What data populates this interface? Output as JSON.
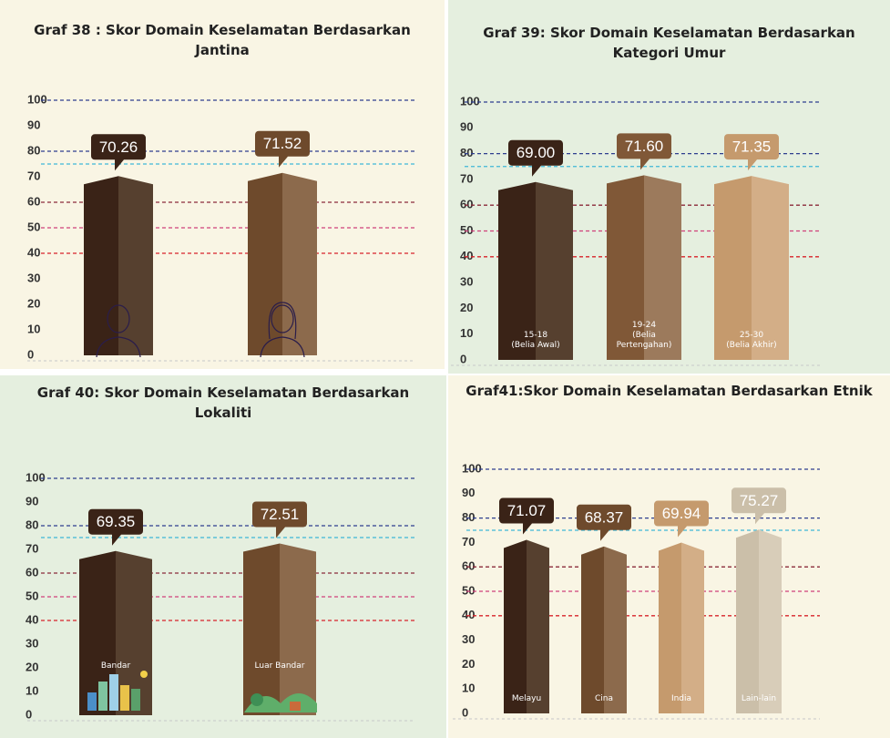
{
  "chart_data": [
    {
      "type": "bar",
      "title": "Graf 38 : Skor Domain Keselamatan Berdasarkan Jantina",
      "categories": [
        null,
        null
      ],
      "values": [
        70.26,
        71.52
      ],
      "value_labels": [
        "70.26",
        "71.52"
      ],
      "colors": [
        [
          "#3a2317",
          "#56402f"
        ],
        [
          "#6e4a2c",
          "#8c6a4c"
        ]
      ],
      "ylim": [
        0,
        100
      ],
      "yticks": [
        0,
        10,
        20,
        30,
        40,
        50,
        60,
        70,
        80,
        90,
        100
      ],
      "reference_lines": [
        {
          "y": 100,
          "color": "#2e3f8f"
        },
        {
          "y": 80,
          "color": "#2e3f8f"
        },
        {
          "y": 75,
          "color": "#3fb8d6"
        },
        {
          "y": 60,
          "color": "#8a2a3a"
        },
        {
          "y": 50,
          "color": "#d0407a"
        },
        {
          "y": 40,
          "color": "#d8232a"
        }
      ]
    },
    {
      "type": "bar",
      "title": "Graf 39: Skor Domain Keselamatan Berdasarkan Kategori Umur",
      "categories": [
        "15-18\n(Belia Awal)",
        "19-24\n(Belia\nPertengahan)",
        "25-30\n(Belia Akhir)"
      ],
      "values": [
        69,
        71.6,
        71.35
      ],
      "value_labels": [
        "69.00",
        "71.60",
        "71.35"
      ],
      "colors": [
        [
          "#3a2317",
          "#56402f"
        ],
        [
          "#805837",
          "#9c7a5c"
        ],
        [
          "#c59a6d",
          "#d3ae87"
        ]
      ],
      "ylim": [
        0,
        100
      ],
      "yticks": [
        0,
        10,
        20,
        30,
        40,
        50,
        60,
        70,
        80,
        90,
        100
      ],
      "reference_lines": [
        {
          "y": 100,
          "color": "#2e3f8f"
        },
        {
          "y": 80,
          "color": "#2e3f8f"
        },
        {
          "y": 75,
          "color": "#3fb8d6"
        },
        {
          "y": 60,
          "color": "#8a2a3a"
        },
        {
          "y": 50,
          "color": "#d0407a"
        },
        {
          "y": 40,
          "color": "#d8232a"
        }
      ]
    },
    {
      "type": "bar",
      "title": "Graf 40: Skor Domain Keselamatan Berdasarkan Lokaliti",
      "categories": [
        "Bandar",
        "Luar Bandar"
      ],
      "values": [
        69.35,
        72.51
      ],
      "value_labels": [
        "69.35",
        "72.51"
      ],
      "colors": [
        [
          "#3a2317",
          "#56402f"
        ],
        [
          "#6e4a2c",
          "#8c6a4c"
        ]
      ],
      "ylim": [
        0,
        100
      ],
      "yticks": [
        0,
        10,
        20,
        30,
        40,
        50,
        60,
        70,
        80,
        90,
        100
      ],
      "reference_lines": [
        {
          "y": 100,
          "color": "#2e3f8f"
        },
        {
          "y": 80,
          "color": "#2e3f8f"
        },
        {
          "y": 75,
          "color": "#3fb8d6"
        },
        {
          "y": 60,
          "color": "#8a2a3a"
        },
        {
          "y": 50,
          "color": "#d0407a"
        },
        {
          "y": 40,
          "color": "#d8232a"
        }
      ]
    },
    {
      "type": "bar",
      "title": "Graf41:Skor Domain Keselamatan Berdasarkan Etnik",
      "categories": [
        "Melayu",
        "Cina",
        "India",
        "Lain-lain"
      ],
      "values": [
        71.07,
        68.37,
        69.94,
        75.27
      ],
      "value_labels": [
        "71.07",
        "68.37",
        "69.94",
        "75.27"
      ],
      "colors": [
        [
          "#3a2317",
          "#56402f"
        ],
        [
          "#6e4a2c",
          "#8c6a4c"
        ],
        [
          "#c59a6d",
          "#d3ae87"
        ],
        [
          "#cbbfa9",
          "#d8cdb9"
        ]
      ],
      "ylim": [
        0,
        100
      ],
      "yticks": [
        0,
        10,
        20,
        30,
        40,
        50,
        60,
        70,
        80,
        90,
        100
      ],
      "reference_lines": [
        {
          "y": 100,
          "color": "#2e3f8f"
        },
        {
          "y": 80,
          "color": "#2e3f8f"
        },
        {
          "y": 75,
          "color": "#3fb8d6"
        },
        {
          "y": 60,
          "color": "#8a2a3a"
        },
        {
          "y": 50,
          "color": "#d0407a"
        },
        {
          "y": 40,
          "color": "#d8232a"
        }
      ]
    }
  ]
}
